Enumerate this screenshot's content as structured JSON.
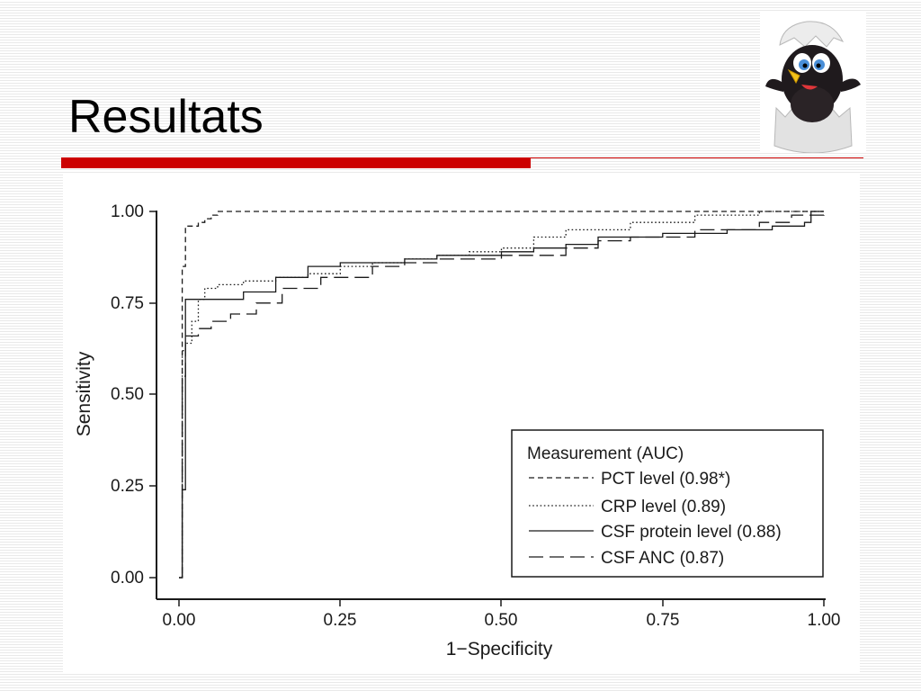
{
  "slide": {
    "title": "Resultats"
  },
  "mascot": {
    "icon": "cartoon-chick-in-eggshell-icon"
  },
  "colors": {
    "accent": "#cc0000",
    "ink": "#1a1a1a"
  },
  "chart_data": {
    "type": "line",
    "subtype": "roc-step",
    "title": "",
    "xlabel": "1−Specificity",
    "ylabel": "Sensitivity",
    "xlim": [
      0,
      1
    ],
    "ylim": [
      0,
      1
    ],
    "xticks": [
      "0.00",
      "0.25",
      "0.50",
      "0.75",
      "1.00"
    ],
    "yticks": [
      "0.00",
      "0.25",
      "0.50",
      "0.75",
      "1.00"
    ],
    "grid": false,
    "legend": {
      "position": "bottom-right",
      "title": "Measurement (AUC)",
      "entries": [
        "PCT level (0.98*)",
        "CRP level (0.89)",
        "CSF protein level (0.88)",
        "CSF ANC (0.87)"
      ]
    },
    "series": [
      {
        "name": "PCT level (0.98*)",
        "style": "short-dash",
        "x": [
          0,
          0.005,
          0.01,
          0.03,
          0.04,
          0.05,
          0.06,
          1.0
        ],
        "y": [
          0,
          0.85,
          0.96,
          0.97,
          0.98,
          0.99,
          1.0,
          1.0
        ]
      },
      {
        "name": "CRP level (0.89)",
        "style": "dotted",
        "x": [
          0,
          0.005,
          0.01,
          0.02,
          0.03,
          0.04,
          0.06,
          0.1,
          0.15,
          0.2,
          0.25,
          0.3,
          0.35,
          0.4,
          0.45,
          0.5,
          0.55,
          0.6,
          0.7,
          0.8,
          0.9,
          1.0
        ],
        "y": [
          0,
          0.62,
          0.64,
          0.7,
          0.76,
          0.79,
          0.8,
          0.81,
          0.82,
          0.83,
          0.85,
          0.86,
          0.87,
          0.88,
          0.89,
          0.9,
          0.93,
          0.95,
          0.97,
          0.99,
          1.0,
          1.0
        ]
      },
      {
        "name": "CSF protein level (0.88)",
        "style": "solid",
        "x": [
          0,
          0.005,
          0.01,
          0.05,
          0.1,
          0.15,
          0.2,
          0.25,
          0.3,
          0.35,
          0.4,
          0.45,
          0.5,
          0.55,
          0.6,
          0.65,
          0.75,
          0.85,
          0.92,
          0.97,
          0.98,
          1.0
        ],
        "y": [
          0,
          0.24,
          0.76,
          0.76,
          0.78,
          0.82,
          0.85,
          0.86,
          0.86,
          0.87,
          0.88,
          0.88,
          0.89,
          0.9,
          0.91,
          0.93,
          0.94,
          0.95,
          0.96,
          0.97,
          1.0,
          1.0
        ]
      },
      {
        "name": "CSF ANC (0.87)",
        "style": "long-dash",
        "x": [
          0,
          0.005,
          0.01,
          0.03,
          0.05,
          0.08,
          0.12,
          0.16,
          0.22,
          0.3,
          0.35,
          0.4,
          0.5,
          0.6,
          0.65,
          0.7,
          0.8,
          0.9,
          0.95,
          1.0
        ],
        "y": [
          0,
          0.55,
          0.66,
          0.68,
          0.7,
          0.72,
          0.75,
          0.79,
          0.82,
          0.85,
          0.86,
          0.87,
          0.88,
          0.9,
          0.92,
          0.93,
          0.95,
          0.97,
          0.99,
          1.0
        ]
      }
    ]
  }
}
